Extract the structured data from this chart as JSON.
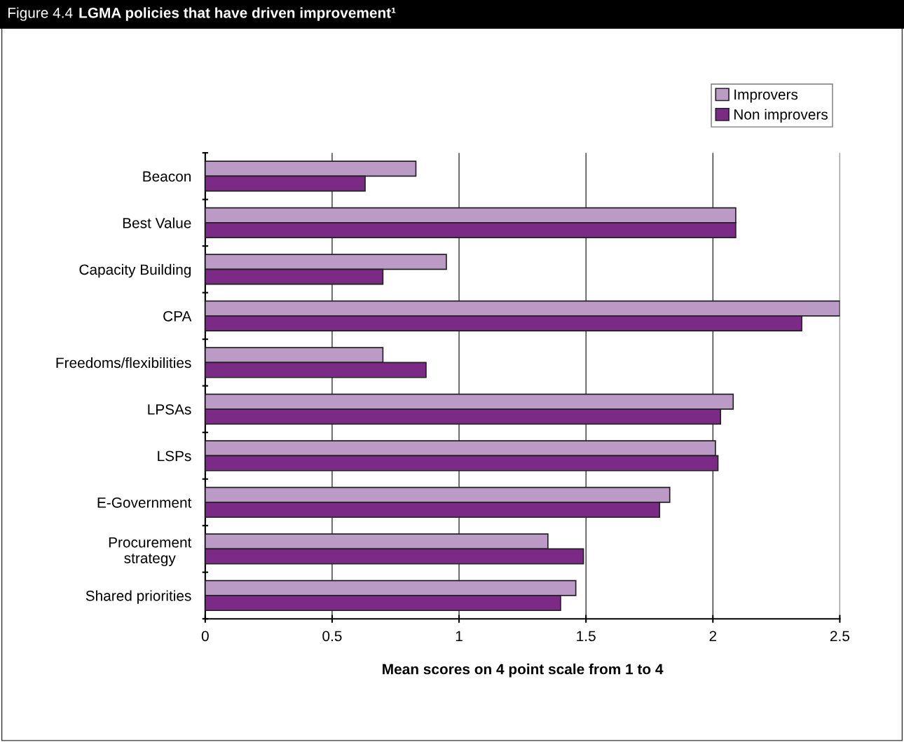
{
  "chart_data": {
    "type": "bar",
    "orientation": "horizontal",
    "title": "Figure 4.4",
    "subtitle": "LGMA policies that have driven improvement¹",
    "xlabel": "Mean scores on 4 point scale from 1 to 4",
    "categories": [
      "Beacon",
      "Best Value",
      "Capacity Building",
      "CPA",
      "Freedoms/flexibilities",
      "LPSAs",
      "LSPs",
      "E-Government",
      "Procurement\nstrategy",
      "Shared priorities"
    ],
    "series": [
      {
        "name": "Improvers",
        "color": "#bb9bc6",
        "values": [
          0.83,
          2.09,
          0.95,
          2.5,
          0.7,
          2.08,
          2.01,
          1.83,
          1.35,
          1.46
        ]
      },
      {
        "name": "Non improvers",
        "color": "#7b2a85",
        "values": [
          0.63,
          2.09,
          0.7,
          2.35,
          0.87,
          2.03,
          2.02,
          1.79,
          1.49,
          1.4
        ]
      }
    ],
    "xlim": [
      0,
      2.5
    ],
    "xticks": [
      0,
      0.5,
      1,
      1.5,
      2,
      2.5
    ],
    "grid": "x",
    "legend": "top right"
  }
}
